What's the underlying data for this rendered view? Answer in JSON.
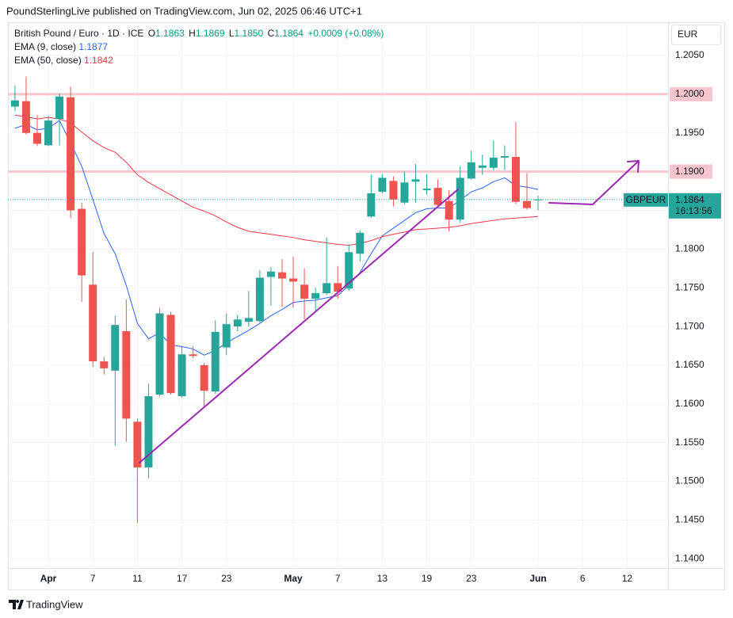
{
  "header": "PoundSterlingLive published on TradingView.com, Jun 02, 2025 06:46 UTC+1",
  "footer": "TradingView",
  "chart_data": {
    "type": "candlestick",
    "title": "British Pound / Euro · 1D · ICE",
    "currency": "EUR",
    "legend": {
      "labels": [
        "O",
        "H",
        "L",
        "C"
      ],
      "values": [
        "1.1863",
        "1.1869",
        "1.1850",
        "1.1864"
      ],
      "change": "+0.0009",
      "change_pct": "(+0.08%)"
    },
    "countdown": "16:13:56",
    "categories": [
      null,
      null,
      null,
      "Apr",
      null,
      null,
      null,
      "7",
      null,
      null,
      null,
      "11",
      null,
      null,
      null,
      "17",
      null,
      null,
      null,
      "23",
      null,
      null,
      null,
      null,
      null,
      "May",
      null,
      null,
      null,
      "7",
      null,
      null,
      null,
      "13",
      null,
      null,
      null,
      "19",
      null,
      null,
      null,
      "23",
      null,
      null,
      null,
      null,
      null,
      "Jun",
      null,
      null,
      null,
      "6",
      null,
      null,
      null,
      "12"
    ],
    "series": [
      {
        "name": "GBPEUR",
        "type": "candlestick",
        "up_color": "#26a69a",
        "down_color": "#ef5350",
        "open": [
          1.1984,
          1.1991,
          1.195,
          1.1934,
          1.1968,
          1.1996,
          1.1852,
          1.1754,
          1.1655,
          1.1643,
          1.1694,
          1.1577,
          1.1518,
          1.1612,
          1.1715,
          1.161,
          1.1664,
          1.165,
          1.1616,
          1.1673,
          1.17,
          1.1706,
          1.1707,
          1.1764,
          1.177,
          1.1762,
          1.1754,
          1.1736,
          1.1743,
          1.1756,
          1.1749,
          1.1794,
          1.1842,
          1.1874,
          1.1888,
          1.186,
          1.1887,
          1.1876,
          1.1879,
          1.1862,
          1.1838,
          1.1891,
          1.1905,
          1.1905,
          1.1918,
          1.1919,
          1.1862,
          1.1863,
          null,
          null,
          null,
          null,
          null,
          null,
          null,
          null
        ],
        "high": [
          1.2011,
          1.2023,
          1.1973,
          1.1972,
          1.2001,
          1.201,
          1.186,
          1.1796,
          1.1661,
          1.1714,
          1.1735,
          1.1581,
          1.1626,
          1.1724,
          1.1719,
          1.1675,
          1.1674,
          1.1653,
          1.1708,
          1.1717,
          1.1715,
          1.1746,
          1.1773,
          1.1777,
          1.1787,
          1.179,
          1.1775,
          1.175,
          1.1815,
          1.1778,
          1.1806,
          1.1824,
          1.1896,
          1.1897,
          1.1894,
          1.19,
          1.191,
          1.1897,
          1.189,
          1.1876,
          1.1907,
          1.1927,
          1.1922,
          1.194,
          1.1934,
          1.1964,
          1.1898,
          1.1869,
          null,
          null,
          null,
          null,
          null,
          null,
          null,
          null
        ],
        "low": [
          1.1978,
          1.1948,
          1.1933,
          1.1933,
          1.1934,
          1.184,
          1.1732,
          1.1648,
          1.1638,
          1.1546,
          1.1551,
          1.1446,
          1.1504,
          1.161,
          1.1612,
          1.1608,
          1.1659,
          1.1597,
          1.1613,
          1.1663,
          1.1694,
          1.17,
          1.1705,
          1.1727,
          1.1725,
          1.1724,
          1.1709,
          1.1719,
          1.1741,
          1.1736,
          1.1746,
          1.1784,
          1.184,
          1.1872,
          1.1855,
          1.1858,
          1.186,
          1.187,
          1.1853,
          1.1823,
          1.1834,
          1.189,
          1.1896,
          1.1902,
          1.1902,
          1.1858,
          1.1851,
          1.185,
          null,
          null,
          null,
          null,
          null,
          null,
          null,
          null
        ],
        "close": [
          1.1992,
          1.195,
          1.1936,
          1.1966,
          1.1997,
          1.185,
          1.1766,
          1.1655,
          1.1646,
          1.1702,
          1.1581,
          1.1518,
          1.161,
          1.1717,
          1.1614,
          1.1664,
          1.1662,
          1.1617,
          1.1693,
          1.1703,
          1.1709,
          1.1711,
          1.1763,
          1.1771,
          1.1762,
          1.1758,
          1.1736,
          1.1743,
          1.1756,
          1.1745,
          1.1796,
          1.1821,
          1.1872,
          1.1892,
          1.1864,
          1.1886,
          1.189,
          1.1878,
          1.1857,
          1.1838,
          1.1892,
          1.1912,
          1.1908,
          1.1918,
          1.192,
          1.1861,
          1.1853,
          1.1864,
          null,
          null,
          null,
          null,
          null,
          null,
          null,
          null
        ]
      },
      {
        "name": "EMA (9, close)",
        "type": "line",
        "color": "#2962ff",
        "values": [
          1.1956,
          1.1961,
          1.1954,
          1.1956,
          1.1966,
          1.1937,
          1.1907,
          1.1864,
          1.182,
          1.1794,
          1.1753,
          1.1704,
          1.1684,
          1.1692,
          1.1676,
          1.1674,
          1.1671,
          1.1663,
          1.1669,
          1.1679,
          1.1687,
          1.1695,
          1.1704,
          1.1714,
          1.1722,
          1.1731,
          1.1733,
          1.1734,
          1.1737,
          1.174,
          1.1753,
          1.177,
          1.1794,
          1.1817,
          1.1827,
          1.1837,
          1.1847,
          1.1852,
          1.1853,
          1.1853,
          1.1863,
          1.1874,
          1.1879,
          1.1887,
          1.1892,
          1.1882,
          1.188,
          1.1877,
          null,
          null,
          null,
          null,
          null,
          null,
          null,
          null
        ]
      },
      {
        "name": "EMA (50, close)",
        "type": "line",
        "color": "#f23645",
        "values": [
          1.1973,
          1.1971,
          1.1968,
          1.197,
          1.1968,
          1.1963,
          1.1951,
          1.194,
          1.1931,
          1.1925,
          1.1912,
          1.1896,
          1.1886,
          1.1878,
          1.187,
          1.1862,
          1.1854,
          1.1849,
          1.1843,
          1.1835,
          1.1828,
          1.1823,
          1.1821,
          1.1819,
          1.1817,
          1.1815,
          1.1812,
          1.181,
          1.1808,
          1.1806,
          1.1805,
          1.1807,
          1.1811,
          1.1816,
          1.1819,
          1.1822,
          1.1825,
          1.1826,
          1.1827,
          1.1828,
          1.183,
          1.1833,
          1.1835,
          1.1837,
          1.1839,
          1.184,
          1.1841,
          1.1842,
          null,
          null,
          null,
          null,
          null,
          null,
          null,
          null
        ]
      }
    ],
    "horizontal_lines": [
      {
        "value": 1.2,
        "label": "1.2000"
      },
      {
        "value": 1.19,
        "label": "1.1900"
      }
    ],
    "line_color": "#f7c5cc",
    "ylim": [
      1.1388,
      1.2093
    ],
    "yticks": [
      {
        "value": 1.14,
        "label": "1.1400"
      },
      {
        "value": 1.145,
        "label": "1.1450"
      },
      {
        "value": 1.15,
        "label": "1.1500"
      },
      {
        "value": 1.155,
        "label": "1.1550"
      },
      {
        "value": 1.16,
        "label": "1.1600"
      },
      {
        "value": 1.165,
        "label": "1.1650"
      },
      {
        "value": 1.17,
        "label": "1.1700"
      },
      {
        "value": 1.175,
        "label": "1.1750"
      },
      {
        "value": 1.18,
        "label": "1.1800"
      },
      {
        "value": 1.185,
        "label": "1.1850"
      },
      {
        "value": 1.19,
        "label": "1.1900"
      },
      {
        "value": 1.195,
        "label": "1.1950"
      },
      {
        "value": 1.2,
        "label": "1.2000"
      },
      {
        "value": 1.205,
        "label": "1.2050"
      }
    ],
    "grid": true
  }
}
